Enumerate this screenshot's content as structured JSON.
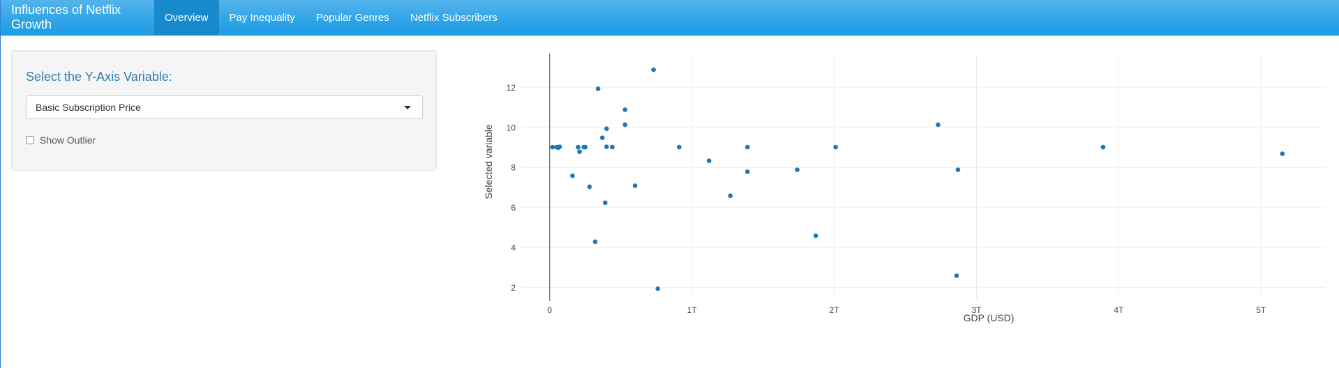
{
  "navbar": {
    "brand": "Influences of Netflix Growth",
    "tabs": [
      {
        "label": "Overview",
        "active": true
      },
      {
        "label": "Pay Inequality",
        "active": false
      },
      {
        "label": "Popular Genres",
        "active": false
      },
      {
        "label": "Netflix Subscribers",
        "active": false
      }
    ],
    "color": "#2fa4e7",
    "active_color": "#178acc"
  },
  "sidebar": {
    "label": "Select the Y-Axis Variable:",
    "select_value": "Basic Subscription Price",
    "checkbox_label": "Show Outlier",
    "checkbox_checked": false
  },
  "chart_data": {
    "type": "scatter",
    "xlabel": "GDP (USD)",
    "ylabel": "Selected variable",
    "xlim": [
      -0.2,
      5.45
    ],
    "ylim": [
      1.4,
      13.6
    ],
    "x_ticks": [
      0,
      1,
      2,
      3,
      4,
      5
    ],
    "x_tick_labels": [
      "0",
      "1T",
      "2T",
      "3T",
      "4T",
      "5T"
    ],
    "y_ticks": [
      2,
      4,
      6,
      8,
      10,
      12
    ],
    "y_tick_labels": [
      "2",
      "4",
      "6",
      "8",
      "10",
      "12"
    ],
    "grid": true,
    "marker_color": "#1f77b4",
    "points": [
      {
        "x": 0.02,
        "y": 9.03
      },
      {
        "x": 0.05,
        "y": 9.03
      },
      {
        "x": 0.06,
        "y": 9.0
      },
      {
        "x": 0.07,
        "y": 9.05
      },
      {
        "x": 0.16,
        "y": 7.6
      },
      {
        "x": 0.2,
        "y": 9.03
      },
      {
        "x": 0.21,
        "y": 8.8
      },
      {
        "x": 0.24,
        "y": 9.03
      },
      {
        "x": 0.25,
        "y": 9.03
      },
      {
        "x": 0.28,
        "y": 7.05
      },
      {
        "x": 0.32,
        "y": 4.3
      },
      {
        "x": 0.34,
        "y": 11.95
      },
      {
        "x": 0.37,
        "y": 9.5
      },
      {
        "x": 0.39,
        "y": 6.25
      },
      {
        "x": 0.4,
        "y": 9.05
      },
      {
        "x": 0.4,
        "y": 9.95
      },
      {
        "x": 0.44,
        "y": 9.03
      },
      {
        "x": 0.53,
        "y": 10.9
      },
      {
        "x": 0.53,
        "y": 10.15
      },
      {
        "x": 0.6,
        "y": 7.1
      },
      {
        "x": 0.73,
        "y": 12.9
      },
      {
        "x": 0.76,
        "y": 1.95
      },
      {
        "x": 0.91,
        "y": 9.03
      },
      {
        "x": 1.12,
        "y": 8.35
      },
      {
        "x": 1.27,
        "y": 6.6
      },
      {
        "x": 1.39,
        "y": 9.03
      },
      {
        "x": 1.39,
        "y": 7.8
      },
      {
        "x": 1.74,
        "y": 7.9
      },
      {
        "x": 1.87,
        "y": 4.6
      },
      {
        "x": 2.01,
        "y": 9.03
      },
      {
        "x": 2.73,
        "y": 10.15
      },
      {
        "x": 2.86,
        "y": 2.6
      },
      {
        "x": 2.87,
        "y": 7.9
      },
      {
        "x": 3.89,
        "y": 9.03
      },
      {
        "x": 5.15,
        "y": 8.7
      }
    ]
  }
}
